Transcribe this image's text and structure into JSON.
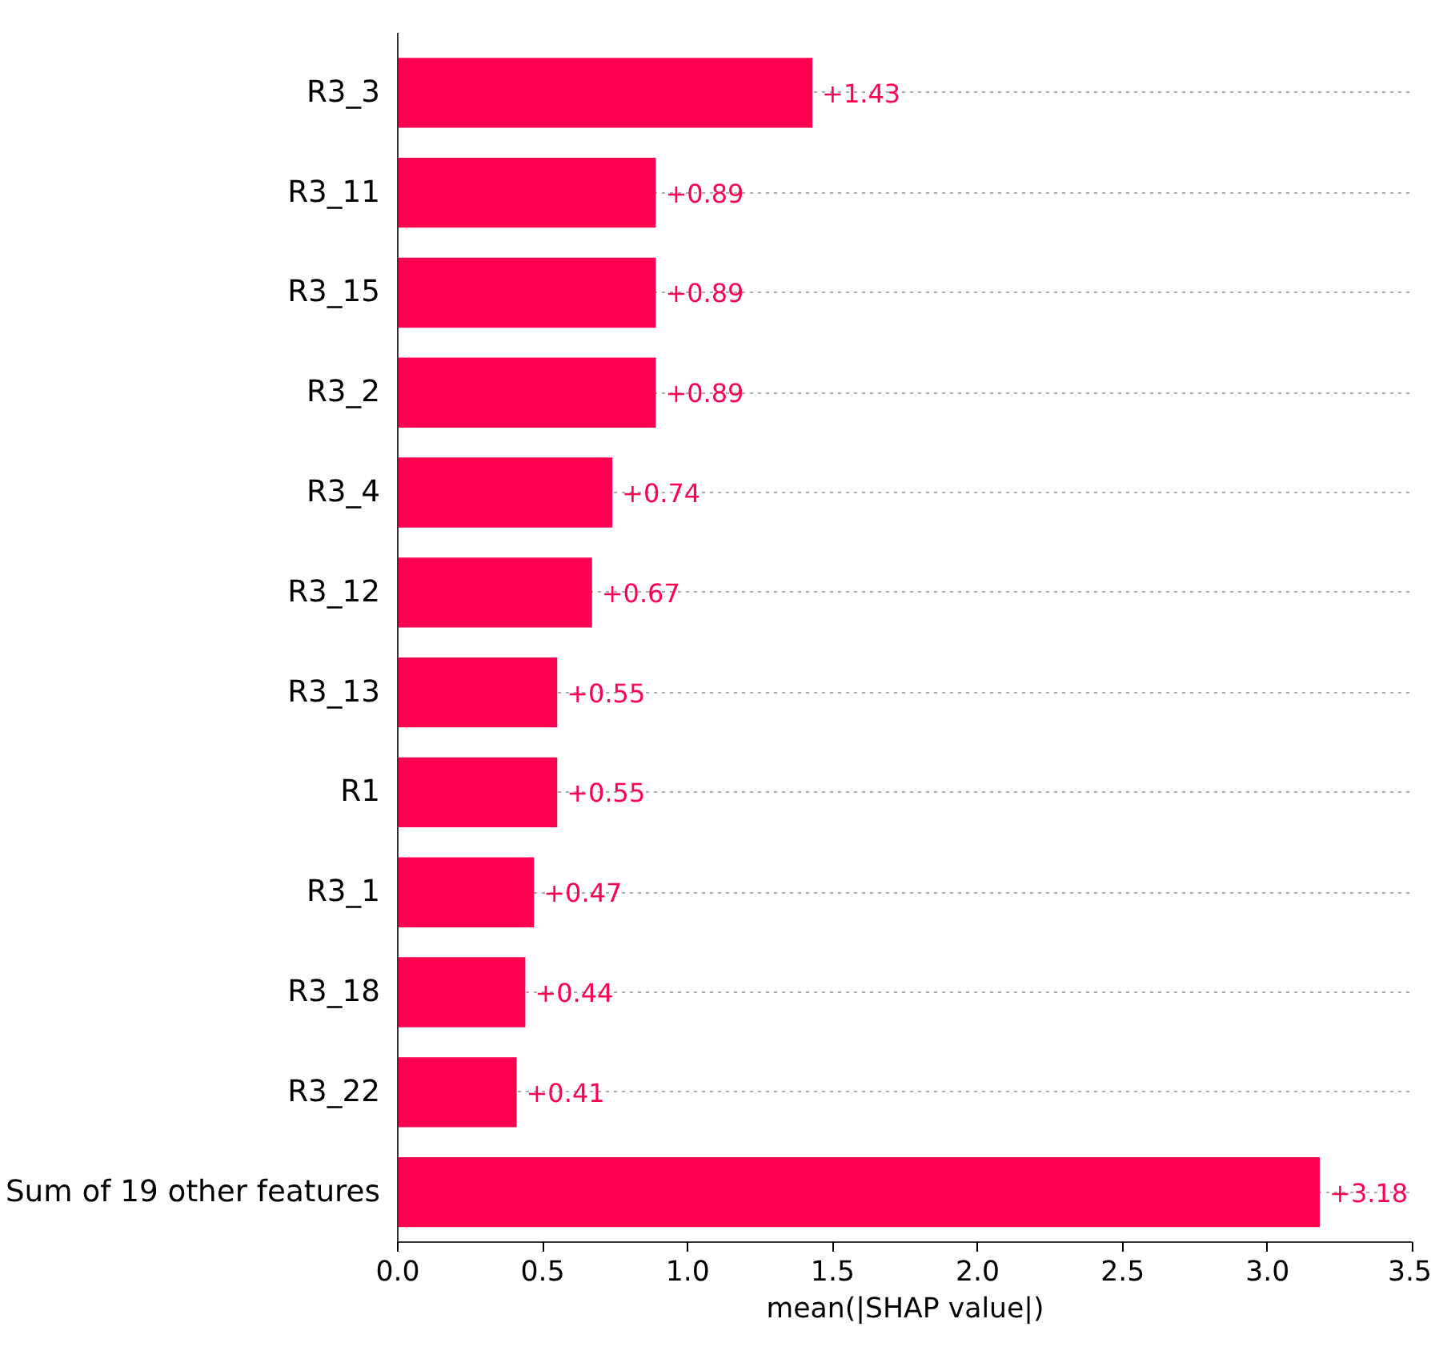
{
  "chart_data": {
    "type": "bar",
    "orientation": "horizontal",
    "xlabel": "mean(|SHAP value|)",
    "categories": [
      "R3_3",
      "R3_11",
      "R3_15",
      "R3_2",
      "R3_4",
      "R3_12",
      "R3_13",
      "R1",
      "R3_1",
      "R3_18",
      "R3_22",
      "Sum of 19 other features"
    ],
    "values": [
      1.43,
      0.89,
      0.89,
      0.89,
      0.74,
      0.67,
      0.55,
      0.55,
      0.47,
      0.44,
      0.41,
      3.18
    ],
    "value_labels": [
      "+1.43",
      "+0.89",
      "+0.89",
      "+0.89",
      "+0.74",
      "+0.67",
      "+0.55",
      "+0.55",
      "+0.47",
      "+0.44",
      "+0.41",
      "+3.18"
    ],
    "color": "#ff0051",
    "xlim": [
      0,
      3.5
    ],
    "xticks": [
      {
        "value": 0,
        "label": "0.0"
      },
      0.5,
      {
        "value": 1,
        "label": "1.0"
      },
      1.5,
      {
        "value": 2,
        "label": "2.0"
      },
      2.5,
      {
        "value": 3,
        "label": "3.0"
      },
      3.5
    ],
    "grid": "y"
  }
}
